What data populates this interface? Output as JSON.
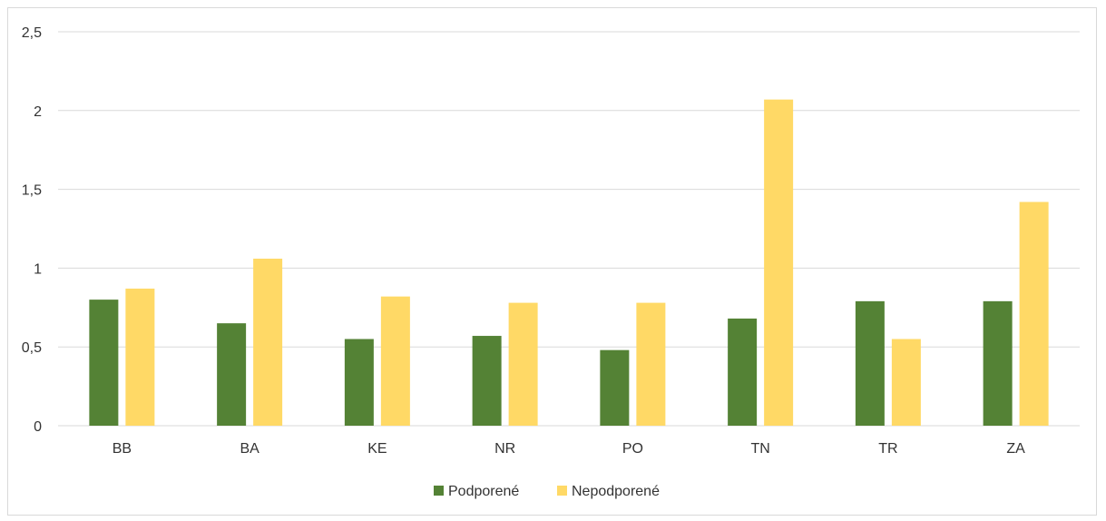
{
  "chart_data": {
    "type": "bar",
    "categories": [
      "BB",
      "BA",
      "KE",
      "NR",
      "PO",
      "TN",
      "TR",
      "ZA"
    ],
    "series": [
      {
        "name": "Podporené",
        "color": "#548235",
        "values": [
          0.8,
          0.65,
          0.55,
          0.57,
          0.48,
          0.68,
          0.79,
          0.79
        ]
      },
      {
        "name": "Nepodporené",
        "color": "#ffd966",
        "values": [
          0.87,
          1.06,
          0.82,
          0.78,
          0.78,
          2.07,
          0.55,
          1.42
        ]
      }
    ],
    "y_ticks": [
      "0",
      "0,5",
      "1",
      "1,5",
      "2",
      "2,5"
    ],
    "ylim": [
      0,
      2.5
    ],
    "grid": true,
    "legend_position": "bottom"
  }
}
